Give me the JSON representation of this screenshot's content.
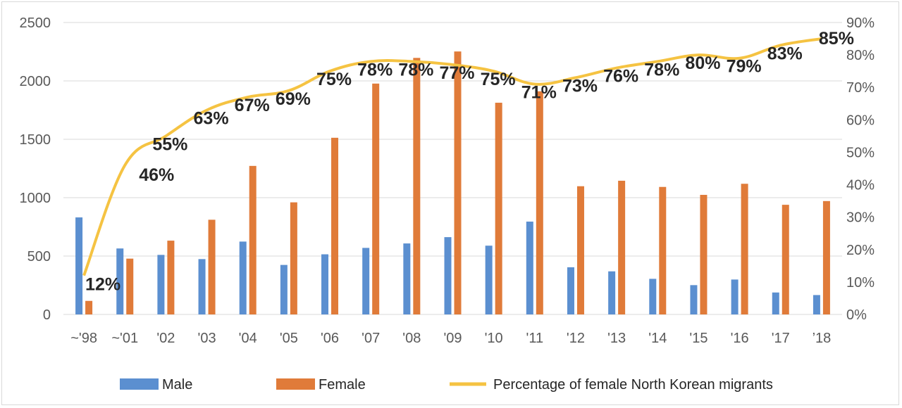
{
  "chart_data": {
    "type": "bar+line",
    "title": "",
    "categories": [
      "~'98",
      "~'01",
      "'02",
      "'03",
      "'04",
      "'05",
      "'06",
      "'07",
      "'08",
      "'09",
      "'10",
      "'11",
      "'12",
      "'13",
      "'14",
      "'15",
      "'16",
      "'17",
      "’18"
    ],
    "series": [
      {
        "name": "Male",
        "axis": "left",
        "color": "#5b8fd0",
        "values": [
          831,
          565,
          510,
          474,
          624,
          424,
          515,
          570,
          608,
          662,
          589,
          795,
          404,
          369,
          305,
          251,
          299,
          188,
          166
        ]
      },
      {
        "name": "Female",
        "axis": "left",
        "color": "#e07b39",
        "values": [
          116,
          478,
          632,
          811,
          1272,
          960,
          1513,
          1977,
          2197,
          2252,
          1813,
          1911,
          1098,
          1145,
          1092,
          1024,
          1119,
          939,
          971
        ]
      },
      {
        "name": "Percentage of female North Korean migrants",
        "axis": "right",
        "type": "line",
        "color": "#f5c342",
        "values": [
          12,
          46,
          55,
          63,
          67,
          69,
          75,
          78,
          78,
          77,
          75,
          71,
          73,
          76,
          78,
          80,
          79,
          83,
          85
        ],
        "labels": [
          "12%",
          "46%",
          "55%",
          "63%",
          "67%",
          "69%",
          "75%",
          "78%",
          "78%",
          "77%",
          "75%",
          "71%",
          "73%",
          "76%",
          "78%",
          "80%",
          "79%",
          "83%",
          "85%"
        ]
      }
    ],
    "left_axis": {
      "min": 0,
      "max": 2500,
      "ticks": [
        0,
        500,
        1000,
        1500,
        2000,
        2500
      ]
    },
    "right_axis": {
      "min": 0,
      "max": 90,
      "ticks": [
        "0%",
        "10%",
        "20%",
        "30%",
        "40%",
        "50%",
        "60%",
        "70%",
        "80%",
        "90%"
      ]
    },
    "grid": true,
    "legend_position": "bottom",
    "legend": [
      "Male",
      "Female",
      "Percentage of female North Korean migrants"
    ]
  }
}
